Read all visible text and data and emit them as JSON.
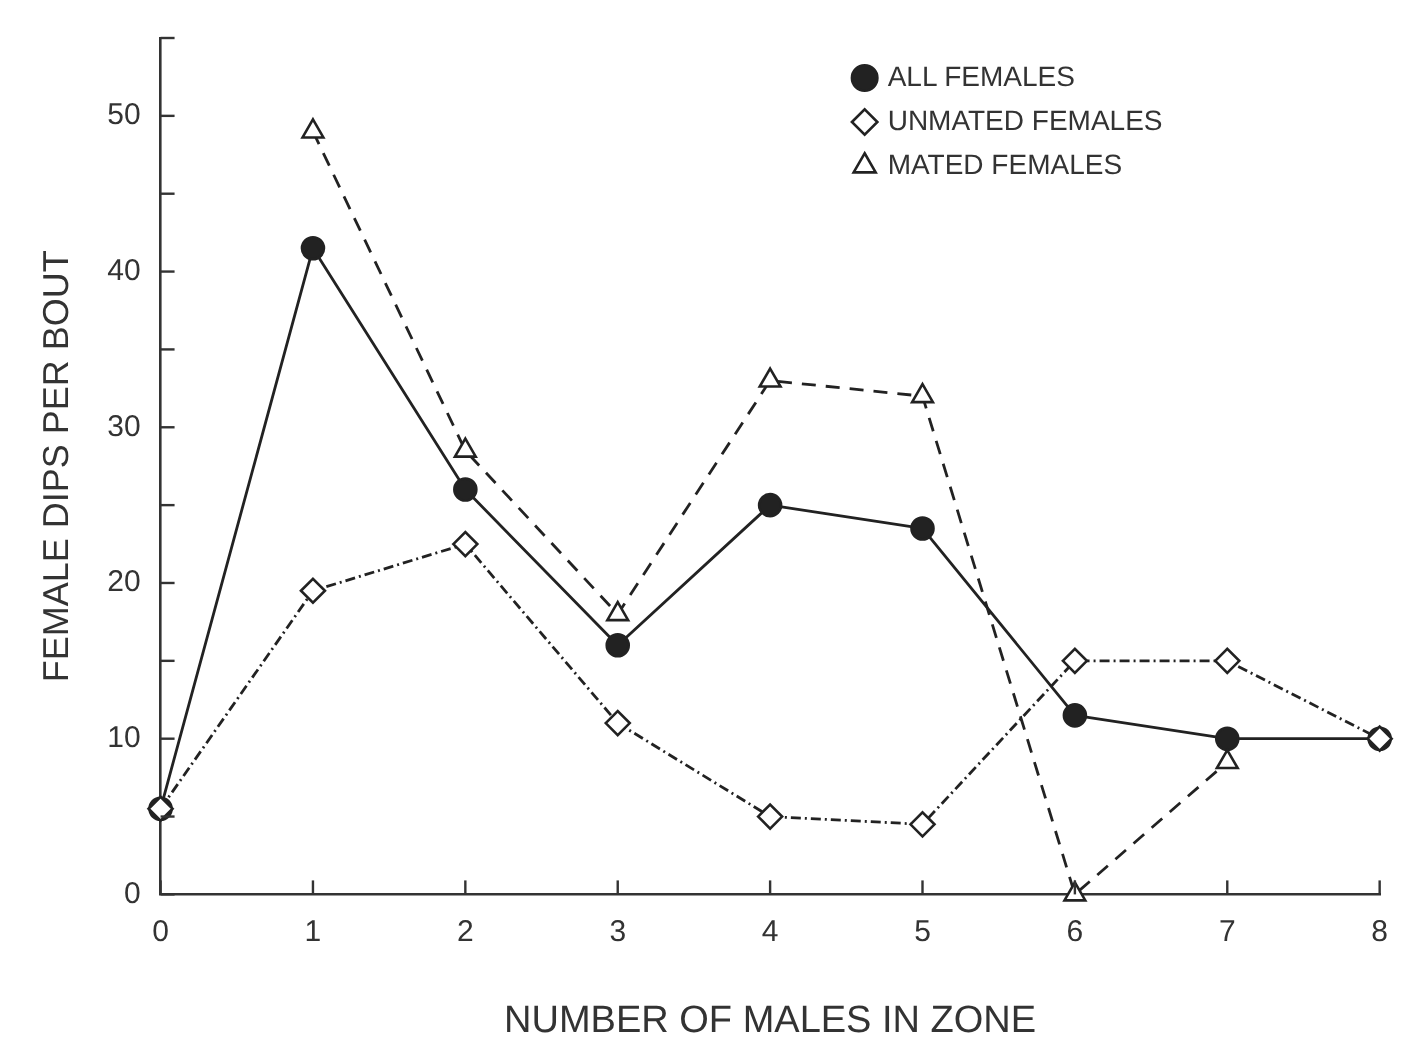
{
  "chart_data": {
    "type": "line",
    "xlabel": "NUMBER OF MALES IN ZONE",
    "ylabel": "FEMALE DIPS PER BOUT",
    "x": [
      0,
      1,
      2,
      3,
      4,
      5,
      6,
      7,
      8
    ],
    "xlim": [
      0,
      8
    ],
    "xticks": [
      0,
      1,
      2,
      3,
      4,
      5,
      6,
      7,
      8
    ],
    "ylim": [
      0,
      55
    ],
    "yticks": [
      0,
      {
        "value": 5,
        "label": null
      },
      10,
      {
        "value": 15,
        "label": null
      },
      20,
      {
        "value": 25,
        "label": null
      },
      30,
      {
        "value": 35,
        "label": null
      },
      40,
      {
        "value": 45,
        "label": null
      },
      50,
      {
        "value": 55,
        "label": null
      }
    ],
    "grid": false,
    "legend": "top right",
    "series": [
      {
        "name": "ALL FEMALES",
        "color": "#222222",
        "marker": "circle",
        "line_style": "solid",
        "values": [
          5.5,
          41.5,
          26,
          16,
          25,
          23.5,
          11.5,
          10,
          10
        ]
      },
      {
        "name": "UNMATED FEMALES",
        "color": "#222222",
        "marker": "diamond",
        "line_style": "dotted",
        "values": [
          5.5,
          19.5,
          22.5,
          11,
          5,
          4.5,
          15,
          15,
          10
        ]
      },
      {
        "name": "MATED FEMALES",
        "color": "#222222",
        "marker": "triangle",
        "line_style": "dashed",
        "values": [
          null,
          49,
          28.5,
          18,
          33,
          32,
          0,
          8.5,
          null
        ]
      }
    ]
  }
}
